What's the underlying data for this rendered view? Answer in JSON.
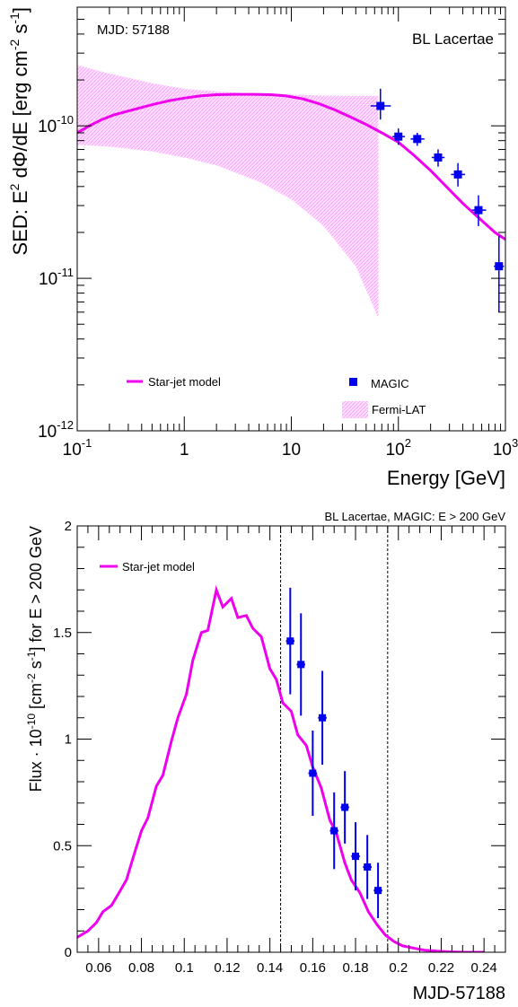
{
  "chart_data": [
    {
      "type": "line",
      "xscale": "log",
      "yscale": "log",
      "xlim": [
        0.1,
        1000
      ],
      "ylim": [
        1e-12,
        6e-10
      ],
      "xlabel": "Energy [GeV]",
      "ylabel_parts": [
        "SED: E",
        "2",
        " dΦ/dE [erg cm",
        "-2",
        " s",
        "-1",
        "]"
      ],
      "x_ticks": [
        {
          "value": 0.1,
          "base": "10",
          "exp": "-1"
        },
        {
          "value": 1,
          "label": "1"
        },
        {
          "value": 10,
          "label": "10"
        },
        {
          "value": 100,
          "base": "10",
          "exp": "2"
        },
        {
          "value": 1000,
          "base": "10",
          "exp": "3"
        }
      ],
      "y_ticks": [
        {
          "value": 1e-12,
          "base": "10",
          "exp": "-12"
        },
        {
          "value": 1e-11,
          "base": "10",
          "exp": "-11"
        },
        {
          "value": 1e-10,
          "base": "10",
          "exp": "-10"
        }
      ],
      "annotations": {
        "top_left": "MJD: 57188",
        "top_right": "BL Lacertae"
      },
      "legend": [
        {
          "name": "Star-jet model",
          "kind": "line",
          "color": "#ee00ee"
        },
        {
          "name": "MAGIC",
          "kind": "marker",
          "color": "#0000ee"
        },
        {
          "name": "Fermi-LAT",
          "kind": "band",
          "color": "#ff99ff"
        }
      ],
      "series": [
        {
          "name": "Star-jet model",
          "kind": "line",
          "color": "#ee00ee",
          "x": [
            0.1,
            0.13,
            0.17,
            0.22,
            0.3,
            0.4,
            0.55,
            0.75,
            1.0,
            1.4,
            2.0,
            3.0,
            4.5,
            6.5,
            9,
            13,
            18,
            25,
            35,
            50,
            70,
            100,
            140,
            200,
            280,
            400,
            560,
            800,
            1000
          ],
          "y": [
            9e-11,
            1e-10,
            1.1e-10,
            1.18e-10,
            1.25e-10,
            1.32e-10,
            1.4e-10,
            1.47e-10,
            1.52e-10,
            1.57e-10,
            1.6e-10,
            1.61e-10,
            1.61e-10,
            1.6e-10,
            1.57e-10,
            1.5e-10,
            1.4e-10,
            1.28e-10,
            1.15e-10,
            1.02e-10,
            9e-11,
            7.8e-11,
            6.4e-11,
            5.1e-11,
            4e-11,
            3.1e-11,
            2.5e-11,
            2e-11,
            1.8e-11
          ]
        },
        {
          "name": "MAGIC",
          "kind": "errorbars",
          "color": "#0000ee",
          "points": [
            {
              "x": 68,
              "y": 1.35e-10,
              "xerr": [
                55,
                85
              ],
              "yerr": [
                1.1e-10,
                1.75e-10
              ]
            },
            {
              "x": 100,
              "y": 8.5e-11,
              "xerr": [
                88,
                115
              ],
              "yerr": [
                7.5e-11,
                9.6e-11
              ]
            },
            {
              "x": 150,
              "y": 8.2e-11,
              "xerr": [
                130,
                175
              ],
              "yerr": [
                7.4e-11,
                9e-11
              ]
            },
            {
              "x": 235,
              "y": 6.2e-11,
              "xerr": [
                205,
                270
              ],
              "yerr": [
                5.4e-11,
                7e-11
              ]
            },
            {
              "x": 360,
              "y": 4.8e-11,
              "xerr": [
                310,
                420
              ],
              "yerr": [
                4e-11,
                5.7e-11
              ]
            },
            {
              "x": 560,
              "y": 2.8e-11,
              "xerr": [
                480,
                660
              ],
              "yerr": [
                2.2e-11,
                3.5e-11
              ]
            },
            {
              "x": 870,
              "y": 1.2e-11,
              "xerr": [
                780,
                970
              ],
              "yerr": [
                6e-12,
                1.9e-11
              ]
            }
          ]
        },
        {
          "name": "Fermi-LAT",
          "kind": "band",
          "color": "#ff99ff",
          "x": [
            0.1,
            0.2,
            0.5,
            1,
            2,
            5,
            10,
            20,
            40,
            65
          ],
          "upper": [
            2.5e-10,
            2.2e-10,
            1.9e-10,
            1.75e-10,
            1.68e-10,
            1.62e-10,
            1.6e-10,
            1.58e-10,
            1.57e-10,
            1.57e-10
          ],
          "lower": [
            7.5e-11,
            7.3e-11,
            6.8e-11,
            6.2e-11,
            5.5e-11,
            4.3e-11,
            3.3e-11,
            2.2e-11,
            1.2e-11,
            5.5e-12
          ]
        }
      ]
    },
    {
      "type": "line",
      "xlim": [
        0.05,
        0.25
      ],
      "ylim": [
        0,
        2
      ],
      "title": "BL Lacertae, MAGIC: E > 200 GeV",
      "xlabel": "MJD-57188",
      "ylabel_parts": [
        "Flux · 10",
        "-10",
        " [cm",
        "-2",
        " s",
        "-1",
        "] for E > 200 GeV"
      ],
      "x_ticks": [
        0.06,
        0.08,
        0.1,
        0.12,
        0.14,
        0.16,
        0.18,
        0.2,
        0.22,
        0.24
      ],
      "y_ticks": [
        0,
        0.5,
        1,
        1.5,
        2
      ],
      "vlines": [
        0.145,
        0.195
      ],
      "legend": [
        {
          "name": "Star-jet model",
          "kind": "line",
          "color": "#ee00ee"
        }
      ],
      "series": [
        {
          "name": "Star-jet model",
          "kind": "line",
          "color": "#ee00ee",
          "x": [
            0.05,
            0.055,
            0.059,
            0.062,
            0.066,
            0.069,
            0.073,
            0.076,
            0.08,
            0.083,
            0.087,
            0.09,
            0.094,
            0.097,
            0.101,
            0.104,
            0.108,
            0.111,
            0.115,
            0.118,
            0.122,
            0.125,
            0.129,
            0.132,
            0.136,
            0.14,
            0.143,
            0.146,
            0.15,
            0.153,
            0.157,
            0.16,
            0.164,
            0.168,
            0.171,
            0.175,
            0.178,
            0.182,
            0.186,
            0.19,
            0.194,
            0.198,
            0.202,
            0.207,
            0.212,
            0.218,
            0.224,
            0.231,
            0.236,
            0.24
          ],
          "y": [
            0.07,
            0.1,
            0.14,
            0.19,
            0.22,
            0.27,
            0.34,
            0.44,
            0.57,
            0.63,
            0.78,
            0.83,
            0.99,
            1.1,
            1.21,
            1.37,
            1.5,
            1.51,
            1.7,
            1.62,
            1.66,
            1.57,
            1.58,
            1.52,
            1.48,
            1.33,
            1.28,
            1.17,
            1.13,
            1.02,
            0.97,
            0.87,
            0.77,
            0.62,
            0.56,
            0.42,
            0.34,
            0.28,
            0.19,
            0.13,
            0.08,
            0.05,
            0.03,
            0.02,
            0.01,
            0.005,
            0.002,
            0,
            0,
            0
          ]
        },
        {
          "name": "MAGIC",
          "kind": "errorbars",
          "color": "#0000ee",
          "points": [
            {
              "x": 0.1495,
              "y": 1.46,
              "xerr": 0.002,
              "yerr": 0.25
            },
            {
              "x": 0.1545,
              "y": 1.35,
              "xerr": 0.002,
              "yerr": 0.24
            },
            {
              "x": 0.16,
              "y": 0.84,
              "xerr": 0.002,
              "yerr": 0.2
            },
            {
              "x": 0.1645,
              "y": 1.1,
              "xerr": 0.002,
              "yerr": 0.22
            },
            {
              "x": 0.17,
              "y": 0.57,
              "xerr": 0.002,
              "yerr": 0.18
            },
            {
              "x": 0.175,
              "y": 0.68,
              "xerr": 0.002,
              "yerr": 0.17
            },
            {
              "x": 0.18,
              "y": 0.45,
              "xerr": 0.002,
              "yerr": 0.16
            },
            {
              "x": 0.1855,
              "y": 0.4,
              "xerr": 0.002,
              "yerr": 0.15
            },
            {
              "x": 0.1905,
              "y": 0.29,
              "xerr": 0.002,
              "yerr": 0.13
            }
          ]
        }
      ]
    }
  ]
}
